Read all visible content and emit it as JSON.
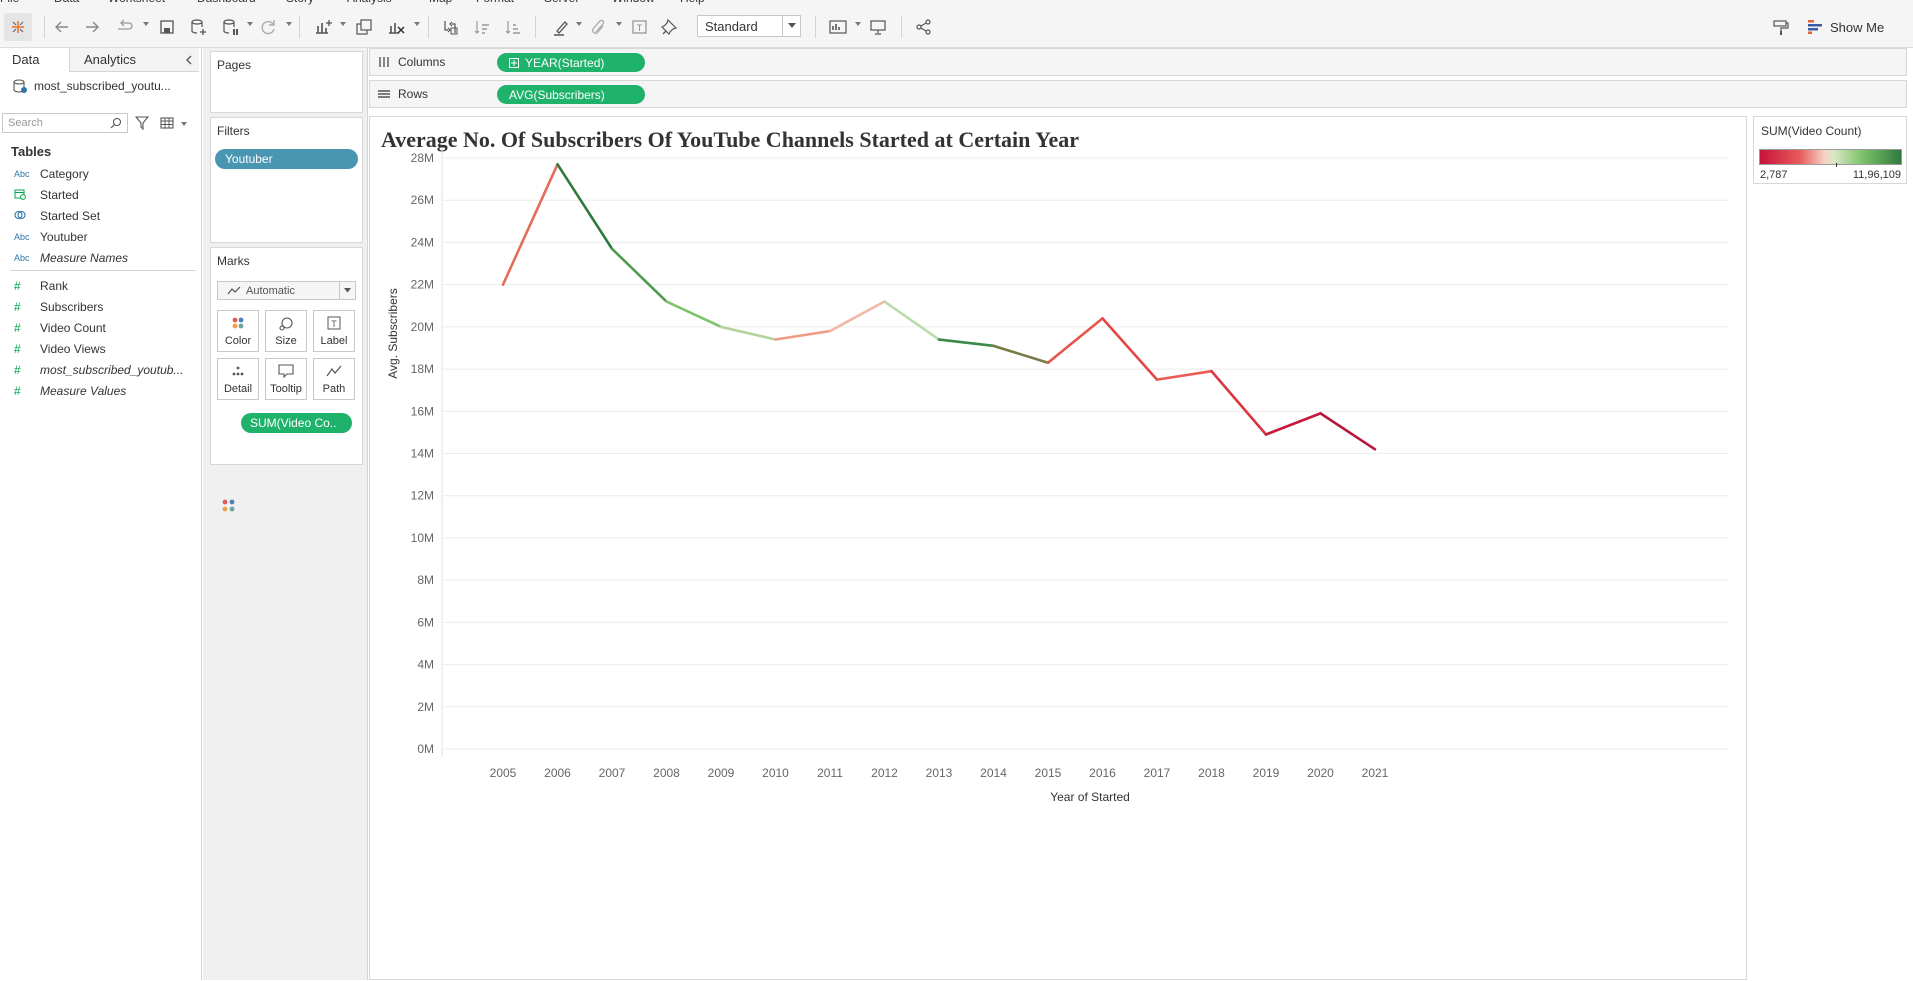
{
  "menu": {
    "items": [
      "File",
      "Data",
      "Worksheet",
      "Dashboard",
      "Story",
      "Analysis",
      "Map",
      "Format",
      "Server",
      "Window",
      "Help"
    ]
  },
  "toolbar": {
    "fit_value": "Standard",
    "show_me_label": "Show Me",
    "icons": [
      "tableau-logo-icon",
      "undo-icon",
      "redo-icon",
      "replay-icon",
      "save-icon",
      "new-datasource-icon",
      "pause-autoupdate-icon",
      "refresh-icon",
      "new-worksheet-icon",
      "duplicate-icon",
      "clear-sheet-icon",
      "swap-icon",
      "sort-ascending-icon",
      "sort-descending-icon",
      "highlight-icon",
      "group-icon",
      "show-labels-icon",
      "pin-icon",
      "show-cards-icon",
      "presentation-icon",
      "share-icon",
      "format-painter-icon"
    ]
  },
  "data_pane": {
    "tab_data": "Data",
    "tab_analytics": "Analytics",
    "datasource_name": "most_subscribed_youtu...",
    "search_placeholder": "Search",
    "tables_heading": "Tables",
    "dimensions": [
      {
        "type": "Abc",
        "label": "Category"
      },
      {
        "type": "date",
        "label": "Started"
      },
      {
        "type": "set",
        "label": "Started Set"
      },
      {
        "type": "Abc",
        "label": "Youtuber"
      },
      {
        "type": "Abc",
        "label": "Measure Names"
      }
    ],
    "measures": [
      {
        "type": "#",
        "label": "Rank"
      },
      {
        "type": "#",
        "label": "Subscribers"
      },
      {
        "type": "#",
        "label": "Video Count"
      },
      {
        "type": "#",
        "label": "Video Views"
      },
      {
        "type": "#",
        "label": "most_subscribed_youtub..."
      },
      {
        "type": "#",
        "label": "Measure Values"
      }
    ]
  },
  "pages_card": {
    "title": "Pages"
  },
  "filters_card": {
    "title": "Filters",
    "pill": "Youtuber"
  },
  "marks_card": {
    "title": "Marks",
    "mark_type": "Automatic",
    "buttons": [
      "Color",
      "Size",
      "Label",
      "Detail",
      "Tooltip",
      "Path"
    ],
    "color_pill": "SUM(Video Co.."
  },
  "shelves": {
    "columns_label": "Columns",
    "columns_pill": "YEAR(Started)",
    "rows_label": "Rows",
    "rows_pill": "AVG(Subscribers)"
  },
  "legend": {
    "title": "SUM(Video Count)",
    "min_label": "2,787",
    "max_label": "11,96,109",
    "colors": [
      "#c7133b",
      "#e85a5a",
      "#f7d2c6",
      "#dbe8c8",
      "#7fc46b",
      "#2e7a3e"
    ]
  },
  "chart_data": {
    "type": "line",
    "title": "Average No. Of Subscribers Of YouTube Channels Started at Certain Year",
    "xlabel": "Year of Started",
    "ylabel": "Avg. Subscribers",
    "x": [
      "2005",
      "2006",
      "2007",
      "2008",
      "2009",
      "2010",
      "2011",
      "2012",
      "2013",
      "2014",
      "2015",
      "2016",
      "2017",
      "2018",
      "2019",
      "2020",
      "2021"
    ],
    "y_millions": [
      22.0,
      27.7,
      23.7,
      21.2,
      20.0,
      19.4,
      19.8,
      21.2,
      19.4,
      19.1,
      18.3,
      20.4,
      17.5,
      17.9,
      14.9,
      15.9,
      14.2
    ],
    "segment_colors": [
      "#e46c5c",
      "#2f7a3f",
      "#4e9a4f",
      "#7fc46b",
      "#b5d39a",
      "#ee9c86",
      "#f0b9a6",
      "#bcdba9",
      "#3b8a49",
      "#7a7a48",
      "#e8544c",
      "#e64545",
      "#ea5c55",
      "#d9363f",
      "#c8193b",
      "#b8173d"
    ],
    "ylim": [
      0,
      28
    ],
    "ytick_labels": [
      "0M",
      "2M",
      "4M",
      "6M",
      "8M",
      "10M",
      "12M",
      "14M",
      "16M",
      "18M",
      "20M",
      "22M",
      "24M",
      "26M",
      "28M"
    ],
    "grid": true,
    "color_encoding": "SUM(Video Count)"
  }
}
